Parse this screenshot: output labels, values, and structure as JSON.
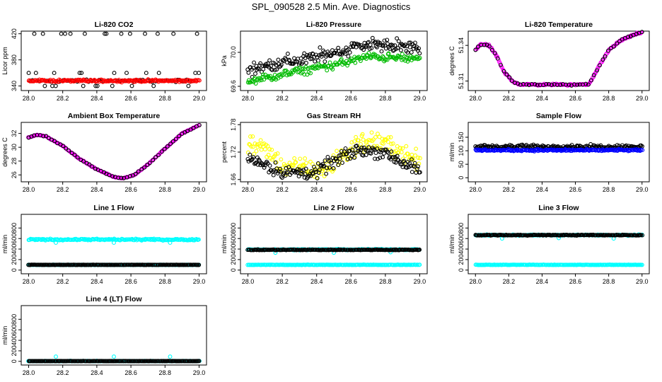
{
  "title": "SPL_090528  2.5 Min. Ave. Diagnostics",
  "chart_data": [
    {
      "type": "scatter",
      "title": "Li-820 CO2",
      "ylabel": "Licor ppm",
      "xlim": [
        28.0,
        29.0
      ],
      "ylim": [
        333,
        424
      ],
      "xticks": [
        "28.0",
        "28.2",
        "28.4",
        "28.6",
        "28.8",
        "29.0"
      ],
      "yticks": [
        "340",
        "380",
        "420"
      ],
      "ytick_values": [
        340,
        380,
        420
      ],
      "series": [
        {
          "color": "#000000",
          "pattern": "levels",
          "levels": [
            420,
            360,
            348,
            340
          ],
          "base": 348
        },
        {
          "color": "#ff0000",
          "pattern": "flat",
          "value": 348,
          "noise": 1.5
        }
      ]
    },
    {
      "type": "scatter",
      "title": "Li-820 Pressure",
      "ylabel": "kPa",
      "xlim": [
        28.0,
        29.0
      ],
      "ylim": [
        69.55,
        70.25
      ],
      "xticks": [
        "28.0",
        "28.2",
        "28.4",
        "28.6",
        "28.8",
        "29.0"
      ],
      "yticks": [
        "69.6",
        "70.0"
      ],
      "ytick_values": [
        69.6,
        70.0
      ],
      "series": [
        {
          "color": "#000000",
          "pattern": "trend",
          "points": [
            [
              28.0,
              69.8
            ],
            [
              28.4,
              69.95
            ],
            [
              28.7,
              70.1
            ],
            [
              29.0,
              70.05
            ]
          ],
          "noise": 0.07
        },
        {
          "color": "#00bb00",
          "pattern": "trend",
          "points": [
            [
              28.0,
              69.65
            ],
            [
              28.3,
              69.78
            ],
            [
              28.5,
              69.85
            ],
            [
              28.7,
              69.95
            ],
            [
              29.0,
              69.92
            ]
          ],
          "noise": 0.04
        }
      ]
    },
    {
      "type": "scatter",
      "title": "Li-820 Temperature",
      "ylabel": "degrees C",
      "xlim": [
        28.0,
        29.0
      ],
      "ylim": [
        51.302,
        51.352
      ],
      "xticks": [
        "28.0",
        "28.2",
        "28.4",
        "28.6",
        "28.8",
        "29.0"
      ],
      "yticks": [
        "51.31",
        "51.34"
      ],
      "ytick_values": [
        51.31,
        51.34
      ],
      "series": [
        {
          "color": "#ff00ff",
          "pattern": "trend",
          "points": [
            [
              28.0,
              51.336
            ],
            [
              28.03,
              51.341
            ],
            [
              28.08,
              51.34
            ],
            [
              28.12,
              51.333
            ],
            [
              28.17,
              51.318
            ],
            [
              28.22,
              51.31
            ],
            [
              28.27,
              51.307
            ],
            [
              28.68,
              51.307
            ],
            [
              28.74,
              51.322
            ],
            [
              28.8,
              51.336
            ],
            [
              28.87,
              51.344
            ],
            [
              28.95,
              51.349
            ],
            [
              29.0,
              51.351
            ]
          ],
          "noise": 0.0006
        },
        {
          "color": "#000000",
          "pattern": "sparse",
          "points": [
            [
              28.0,
              51.336
            ],
            [
              28.03,
              51.341
            ],
            [
              28.08,
              51.34
            ],
            [
              28.12,
              51.333
            ],
            [
              28.17,
              51.318
            ],
            [
              28.22,
              51.31
            ],
            [
              28.27,
              51.307
            ],
            [
              28.68,
              51.307
            ],
            [
              28.74,
              51.322
            ],
            [
              28.8,
              51.336
            ],
            [
              28.87,
              51.344
            ],
            [
              28.95,
              51.349
            ],
            [
              29.0,
              51.351
            ]
          ],
          "noise": 0.0005
        }
      ]
    },
    {
      "type": "scatter",
      "title": "Ambient Box Temperature",
      "ylabel": "degrees C",
      "xlim": [
        28.0,
        29.0
      ],
      "ylim": [
        25.0,
        33.6
      ],
      "xticks": [
        "28.0",
        "28.2",
        "28.4",
        "28.6",
        "28.8",
        "29.0"
      ],
      "yticks": [
        "26",
        "28",
        "30",
        "32"
      ],
      "ytick_values": [
        26,
        28,
        30,
        32
      ],
      "series": [
        {
          "color": "#ff00ff",
          "pattern": "trend",
          "points": [
            [
              28.0,
              31.4
            ],
            [
              28.05,
              31.8
            ],
            [
              28.1,
              31.6
            ],
            [
              28.2,
              30.2
            ],
            [
              28.3,
              28.3
            ],
            [
              28.4,
              26.8
            ],
            [
              28.5,
              25.7
            ],
            [
              28.55,
              25.5
            ],
            [
              28.62,
              26.0
            ],
            [
              28.7,
              27.5
            ],
            [
              28.8,
              29.8
            ],
            [
              28.9,
              32.0
            ],
            [
              29.0,
              33.2
            ]
          ],
          "noise": 0.05
        },
        {
          "color": "#000000",
          "pattern": "sparse",
          "points": [
            [
              28.0,
              31.4
            ],
            [
              28.05,
              31.8
            ],
            [
              28.1,
              31.6
            ],
            [
              28.2,
              30.2
            ],
            [
              28.3,
              28.3
            ],
            [
              28.4,
              26.8
            ],
            [
              28.5,
              25.7
            ],
            [
              28.55,
              25.5
            ],
            [
              28.62,
              26.0
            ],
            [
              28.7,
              27.5
            ],
            [
              28.8,
              29.8
            ],
            [
              28.9,
              32.0
            ],
            [
              29.0,
              33.2
            ]
          ],
          "noise": 0.05
        }
      ]
    },
    {
      "type": "scatter",
      "title": "Gas Stream RH",
      "ylabel": "percent",
      "xlim": [
        28.0,
        29.0
      ],
      "ylim": [
        1.655,
        1.785
      ],
      "xticks": [
        "28.0",
        "28.2",
        "28.4",
        "28.6",
        "28.8",
        "29.0"
      ],
      "yticks": [
        "1.66",
        "1.72",
        "1.78"
      ],
      "ytick_values": [
        1.66,
        1.72,
        1.78
      ],
      "series": [
        {
          "color": "#ffff00",
          "pattern": "trend",
          "points": [
            [
              28.0,
              1.74
            ],
            [
              28.1,
              1.725
            ],
            [
              28.2,
              1.69
            ],
            [
              28.3,
              1.685
            ],
            [
              28.45,
              1.68
            ],
            [
              28.55,
              1.71
            ],
            [
              28.65,
              1.74
            ],
            [
              28.75,
              1.745
            ],
            [
              28.85,
              1.73
            ],
            [
              28.95,
              1.71
            ],
            [
              29.0,
              1.7
            ]
          ],
          "noise": 0.018
        },
        {
          "color": "#000000",
          "pattern": "trend",
          "points": [
            [
              28.0,
              1.71
            ],
            [
              28.2,
              1.675
            ],
            [
              28.4,
              1.675
            ],
            [
              28.5,
              1.7
            ],
            [
              28.65,
              1.725
            ],
            [
              28.8,
              1.72
            ],
            [
              29.0,
              1.675
            ]
          ],
          "noise": 0.013
        }
      ]
    },
    {
      "type": "scatter",
      "title": "Sample Flow",
      "ylabel": "ml/min",
      "xlim": [
        28.0,
        29.0
      ],
      "ylim": [
        -15,
        205
      ],
      "xticks": [
        "28.0",
        "28.2",
        "28.4",
        "28.6",
        "28.8",
        "29.0"
      ],
      "yticks": [
        "0",
        "50",
        "100",
        "150"
      ],
      "ytick_values": [
        0,
        50,
        100,
        150
      ],
      "series": [
        {
          "color": "#000000",
          "pattern": "flat",
          "value": 115,
          "noise": 6
        },
        {
          "color": "#0000ff",
          "pattern": "flat",
          "value": 102,
          "noise": 3
        }
      ]
    },
    {
      "type": "scatter",
      "title": "Line 1 Flow",
      "ylabel": "ml/min",
      "xlim": [
        28.0,
        29.0
      ],
      "ylim": [
        -70,
        1060
      ],
      "xticks": [
        "28.0",
        "28.2",
        "28.4",
        "28.6",
        "28.8",
        "29.0"
      ],
      "yticks": [
        "0",
        "200",
        "400",
        "600",
        "800"
      ],
      "ytick_values": [
        0,
        200,
        400,
        600,
        800
      ],
      "series": [
        {
          "color": "#00ffff",
          "pattern": "flat",
          "value": 580,
          "noise": 12,
          "dips": [
            [
              28.16,
              520
            ],
            [
              28.5,
              520
            ],
            [
              28.83,
              520
            ]
          ]
        },
        {
          "color": "#00ffff",
          "pattern": "flat",
          "value": 100,
          "noise": 2
        },
        {
          "color": "#000000",
          "pattern": "flat",
          "value": 100,
          "noise": 2
        }
      ]
    },
    {
      "type": "scatter",
      "title": "Line 2 Flow",
      "ylabel": "ml/min",
      "xlim": [
        28.0,
        29.0
      ],
      "ylim": [
        -70,
        1060
      ],
      "xticks": [
        "28.0",
        "28.2",
        "28.4",
        "28.6",
        "28.8",
        "29.0"
      ],
      "yticks": [
        "0",
        "200",
        "400",
        "600",
        "800"
      ],
      "ytick_values": [
        0,
        200,
        400,
        600,
        800
      ],
      "series": [
        {
          "color": "#00ffff",
          "pattern": "flat",
          "value": 390,
          "noise": 8,
          "dips": [
            [
              28.16,
              330
            ],
            [
              28.5,
              330
            ],
            [
              28.83,
              340
            ]
          ]
        },
        {
          "color": "#000000",
          "pattern": "flat",
          "value": 385,
          "noise": 6
        },
        {
          "color": "#00ffff",
          "pattern": "flat",
          "value": 100,
          "noise": 3
        }
      ]
    },
    {
      "type": "scatter",
      "title": "Line 3 Flow",
      "ylabel": "ml/min",
      "xlim": [
        28.0,
        29.0
      ],
      "ylim": [
        -70,
        1060
      ],
      "xticks": [
        "28.0",
        "28.2",
        "28.4",
        "28.6",
        "28.8",
        "29.0"
      ],
      "yticks": [
        "0",
        "200",
        "400",
        "600",
        "800"
      ],
      "ytick_values": [
        0,
        200,
        400,
        600,
        800
      ],
      "series": [
        {
          "color": "#00ffff",
          "pattern": "flat",
          "value": 665,
          "noise": 8,
          "dips": [
            [
              28.16,
              600
            ],
            [
              28.5,
              610
            ],
            [
              28.83,
              600
            ]
          ]
        },
        {
          "color": "#000000",
          "pattern": "flat",
          "value": 665,
          "noise": 6
        },
        {
          "color": "#00ffff",
          "pattern": "flat",
          "value": 100,
          "noise": 3
        }
      ]
    },
    {
      "type": "scatter",
      "title": "Line 4 (LT) Flow",
      "ylabel": "ml/min",
      "xlim": [
        28.0,
        29.0
      ],
      "ylim": [
        -70,
        1060
      ],
      "xticks": [
        "28.0",
        "28.2",
        "28.4",
        "28.6",
        "28.8",
        "29.0"
      ],
      "yticks": [
        "0",
        "200",
        "400",
        "600",
        "800"
      ],
      "ytick_values": [
        0,
        200,
        400,
        600,
        800
      ],
      "series": [
        {
          "color": "#00ffff",
          "pattern": "flat",
          "value": 5,
          "noise": 3,
          "dips": [
            [
              28.16,
              90
            ],
            [
              28.5,
              90
            ],
            [
              28.83,
              90
            ]
          ]
        },
        {
          "color": "#000000",
          "pattern": "flat",
          "value": 5,
          "noise": 2
        }
      ]
    }
  ]
}
